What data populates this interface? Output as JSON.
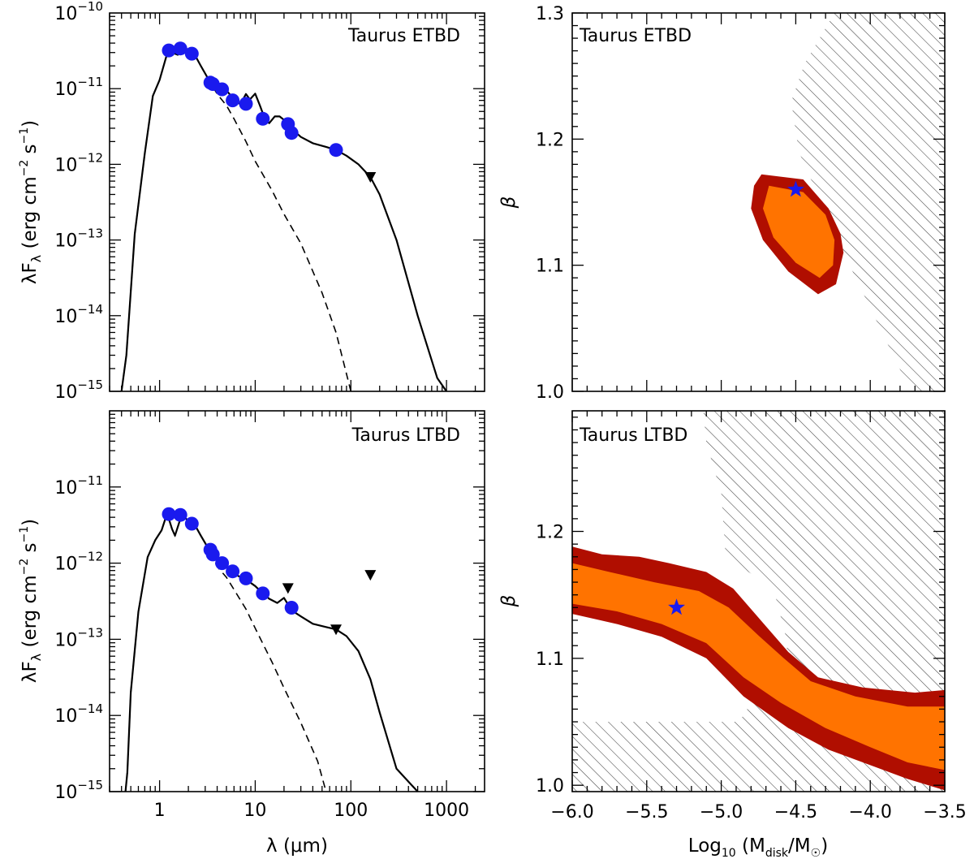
{
  "chart_data": [
    {
      "id": "sed_etbd",
      "type": "line",
      "title": "Taurus ETBD",
      "xlabel": "λ (μm)",
      "ylabel": "λF_λ (erg cm^-2 s^-1)",
      "xscale": "log",
      "yscale": "log",
      "xlim": [
        0.3,
        2500
      ],
      "ylim": [
        1e-15,
        1e-10
      ],
      "yticks": [
        {
          "v": 1e-15,
          "e": "−15"
        },
        {
          "v": 1e-14,
          "e": "−14"
        },
        {
          "v": 1e-13,
          "e": "−13"
        },
        {
          "v": 1e-12,
          "e": "−12"
        },
        {
          "v": 1e-11,
          "e": "−11"
        },
        {
          "v": 1e-10,
          "e": "−10"
        }
      ],
      "photometry": {
        "x": [
          1.25,
          1.65,
          2.17,
          3.4,
          3.6,
          4.5,
          5.8,
          8.0,
          12,
          22,
          24,
          70
        ],
        "y": [
          3.2e-11,
          3.4e-11,
          2.9e-11,
          1.2e-11,
          1.15e-11,
          9.8e-12,
          7e-12,
          6.3e-12,
          4e-12,
          3.4e-12,
          2.6e-12,
          1.55e-12
        ]
      },
      "upper_limits": {
        "x": [
          160
        ],
        "y": [
          6.8e-13
        ]
      },
      "model_total": {
        "x": [
          0.4,
          0.45,
          0.55,
          0.7,
          0.85,
          1.0,
          1.2,
          1.35,
          1.55,
          1.7,
          2.0,
          2.3,
          2.7,
          3.4,
          4.0,
          5.0,
          6.0,
          7.0,
          8.0,
          8.8,
          10,
          11.2,
          12.5,
          14,
          16,
          18,
          22,
          26,
          30,
          40,
          55,
          70,
          90,
          120,
          160,
          200,
          300,
          500,
          800,
          1000
        ],
        "y": [
          1e-15,
          3e-15,
          1.2e-13,
          1.4e-12,
          8e-12,
          1.3e-11,
          2.9e-11,
          3e-11,
          2.8e-11,
          3.5e-11,
          3.3e-11,
          2.9e-11,
          2e-11,
          1.2e-11,
          1.05e-11,
          9.5e-12,
          7.2e-12,
          6.2e-12,
          8.5e-12,
          7.2e-12,
          8.6e-12,
          6e-12,
          4.1e-12,
          3.5e-12,
          4.3e-12,
          4.3e-12,
          3.5e-12,
          2.7e-12,
          2.3e-12,
          1.9e-12,
          1.7e-12,
          1.55e-12,
          1.3e-12,
          1e-12,
          6.8e-13,
          4e-13,
          1e-13,
          1e-14,
          1.5e-15,
          1e-15
        ]
      },
      "model_photosphere": {
        "x": [
          0.4,
          0.45,
          0.55,
          0.7,
          0.85,
          1.0,
          1.2,
          1.35,
          1.55,
          1.7,
          2.0,
          2.3,
          2.7,
          3.4,
          4.0,
          5.0,
          6.0,
          8.0,
          10,
          15,
          20,
          30,
          50,
          70,
          100
        ],
        "y": [
          1e-15,
          3e-15,
          1.2e-13,
          1.4e-12,
          8e-12,
          1.3e-11,
          2.9e-11,
          3e-11,
          2.8e-11,
          3.5e-11,
          3.3e-11,
          2.9e-11,
          2e-11,
          1.2e-11,
          8.5e-12,
          6e-12,
          4e-12,
          2e-12,
          1.1e-12,
          4.5e-13,
          2.2e-13,
          9e-14,
          2e-14,
          6e-15,
          1e-15
        ]
      }
    },
    {
      "id": "grid_etbd",
      "type": "contour",
      "title": "Taurus ETBD",
      "xlabel": "Log10 (M_disk/M_sun)",
      "ylabel": "β",
      "xlim": [
        -6.0,
        -3.5
      ],
      "ylim": [
        1.0,
        1.3
      ],
      "yticks": [
        "1.0",
        "1.1",
        "1.2",
        "1.3"
      ],
      "best_fit": {
        "x": -4.5,
        "y": 1.16
      },
      "contour_outer": [
        [
          -4.73,
          1.172
        ],
        [
          -4.45,
          1.168
        ],
        [
          -4.28,
          1.145
        ],
        [
          -4.2,
          1.125
        ],
        [
          -4.18,
          1.11
        ],
        [
          -4.23,
          1.085
        ],
        [
          -4.35,
          1.077
        ],
        [
          -4.55,
          1.095
        ],
        [
          -4.72,
          1.12
        ],
        [
          -4.8,
          1.145
        ],
        [
          -4.78,
          1.163
        ]
      ],
      "contour_inner": [
        [
          -4.68,
          1.163
        ],
        [
          -4.45,
          1.158
        ],
        [
          -4.3,
          1.14
        ],
        [
          -4.24,
          1.12
        ],
        [
          -4.25,
          1.1
        ],
        [
          -4.34,
          1.09
        ],
        [
          -4.5,
          1.102
        ],
        [
          -4.65,
          1.122
        ],
        [
          -4.72,
          1.145
        ]
      ],
      "excluded_region": [
        [
          -4.24,
          1.3
        ],
        [
          -3.5,
          1.3
        ],
        [
          -3.5,
          1.0
        ],
        [
          -3.73,
          1.0
        ],
        [
          -4.18,
          1.11
        ],
        [
          -4.48,
          1.19
        ],
        [
          -4.53,
          1.23
        ],
        [
          -4.44,
          1.26
        ]
      ]
    },
    {
      "id": "sed_ltbd",
      "type": "line",
      "title": "Taurus LTBD",
      "xlabel": "λ (μm)",
      "ylabel": "λF_λ (erg cm^-2 s^-1)",
      "xscale": "log",
      "yscale": "log",
      "xlim": [
        0.3,
        2500
      ],
      "ylim": [
        1e-15,
        1e-10
      ],
      "yticks": [
        {
          "v": 1e-15,
          "e": "−15"
        },
        {
          "v": 1e-14,
          "e": "−14"
        },
        {
          "v": 1e-13,
          "e": "−13"
        },
        {
          "v": 1e-12,
          "e": "−12"
        },
        {
          "v": 1e-11,
          "e": "−11"
        }
      ],
      "xticks": [
        {
          "v": 1,
          "t": "1"
        },
        {
          "v": 10,
          "t": "10"
        },
        {
          "v": 100,
          "t": "100"
        },
        {
          "v": 1000,
          "t": "1000"
        }
      ],
      "photometry": {
        "x": [
          1.25,
          1.65,
          2.17,
          3.4,
          3.6,
          4.5,
          5.8,
          8.0,
          12,
          24
        ],
        "y": [
          4.4e-12,
          4.3e-12,
          3.3e-12,
          1.5e-12,
          1.3e-12,
          1e-12,
          7.8e-13,
          6.3e-13,
          4e-13,
          2.6e-13
        ]
      },
      "upper_limits": {
        "x": [
          22,
          70,
          160
        ],
        "y": [
          4.7e-13,
          1.35e-13,
          7e-13
        ]
      },
      "model_total": {
        "x": [
          0.44,
          0.46,
          0.5,
          0.6,
          0.75,
          0.9,
          1.05,
          1.2,
          1.35,
          1.45,
          1.7,
          2.0,
          2.3,
          2.7,
          3.4,
          4.0,
          5.0,
          6.0,
          8.0,
          10,
          12,
          14,
          17,
          20,
          24,
          30,
          40,
          55,
          70,
          90,
          120,
          160,
          200,
          300,
          500
        ],
        "y": [
          1e-15,
          1.8e-15,
          2e-14,
          2.3e-13,
          1.2e-12,
          2e-12,
          2.7e-12,
          4.5e-12,
          2.8e-12,
          2.3e-12,
          4.3e-12,
          3.6e-12,
          3.3e-12,
          2.3e-12,
          1.4e-12,
          1.1e-12,
          9e-13,
          7.2e-13,
          6.1e-13,
          5e-13,
          4e-13,
          3.4e-13,
          3e-13,
          3.5e-13,
          2.4e-13,
          2e-13,
          1.6e-13,
          1.45e-13,
          1.35e-13,
          1.1e-13,
          7e-14,
          3e-14,
          1.1e-14,
          2e-15,
          1e-15
        ]
      },
      "model_photosphere": {
        "x": [
          0.44,
          0.46,
          0.5,
          0.6,
          0.75,
          0.9,
          1.05,
          1.2,
          1.35,
          1.45,
          1.7,
          2.0,
          2.3,
          2.7,
          3.4,
          4.0,
          5.0,
          6.0,
          8.0,
          10,
          15,
          20,
          30,
          45,
          55
        ],
        "y": [
          1e-15,
          1.8e-15,
          2e-14,
          2.3e-13,
          1.2e-12,
          2e-12,
          2.7e-12,
          4.5e-12,
          2.8e-12,
          2.3e-12,
          4.3e-12,
          3.6e-12,
          3.3e-12,
          2.3e-12,
          1.4e-12,
          9e-13,
          6.5e-13,
          4.5e-13,
          2.5e-13,
          1.4e-13,
          5e-14,
          2.3e-14,
          8e-15,
          2.5e-15,
          1e-15
        ]
      }
    },
    {
      "id": "grid_ltbd",
      "type": "contour",
      "title": "Taurus LTBD",
      "xlabel": "Log10 (M_disk/M_sun)",
      "ylabel": "β",
      "xlim": [
        -6.0,
        -3.5
      ],
      "ylim": [
        0.995,
        1.295
      ],
      "yticks": [
        "1.0",
        "1.1",
        "1.2"
      ],
      "xticks": [
        "−6.0",
        "−5.5",
        "−5.0",
        "−4.5",
        "−4.0",
        "−3.5"
      ],
      "best_fit": {
        "x": -5.3,
        "y": 1.14
      },
      "contour_outer": [
        [
          -6.0,
          1.188
        ],
        [
          -5.8,
          1.182
        ],
        [
          -5.55,
          1.18
        ],
        [
          -5.35,
          1.175
        ],
        [
          -5.1,
          1.168
        ],
        [
          -4.92,
          1.155
        ],
        [
          -4.75,
          1.132
        ],
        [
          -4.55,
          1.105
        ],
        [
          -4.35,
          1.085
        ],
        [
          -4.05,
          1.077
        ],
        [
          -3.7,
          1.073
        ],
        [
          -3.5,
          1.075
        ],
        [
          -3.5,
          0.996
        ],
        [
          -3.75,
          1.005
        ],
        [
          -3.98,
          1.015
        ],
        [
          -4.28,
          1.028
        ],
        [
          -4.55,
          1.045
        ],
        [
          -4.85,
          1.07
        ],
        [
          -5.1,
          1.1
        ],
        [
          -5.4,
          1.117
        ],
        [
          -5.7,
          1.127
        ],
        [
          -6.0,
          1.135
        ]
      ],
      "contour_inner": [
        [
          -6.0,
          1.175
        ],
        [
          -5.75,
          1.168
        ],
        [
          -5.45,
          1.16
        ],
        [
          -5.15,
          1.153
        ],
        [
          -4.95,
          1.14
        ],
        [
          -4.75,
          1.118
        ],
        [
          -4.58,
          1.1
        ],
        [
          -4.4,
          1.082
        ],
        [
          -4.1,
          1.07
        ],
        [
          -3.75,
          1.062
        ],
        [
          -3.5,
          1.062
        ],
        [
          -3.5,
          1.012
        ],
        [
          -3.75,
          1.018
        ],
        [
          -4.0,
          1.03
        ],
        [
          -4.3,
          1.045
        ],
        [
          -4.6,
          1.065
        ],
        [
          -4.85,
          1.085
        ],
        [
          -5.1,
          1.112
        ],
        [
          -5.4,
          1.127
        ],
        [
          -5.7,
          1.137
        ],
        [
          -6.0,
          1.143
        ]
      ],
      "excluded_region": [
        [
          -5.12,
          1.295
        ],
        [
          -3.5,
          1.295
        ],
        [
          -3.5,
          0.995
        ],
        [
          -6.0,
          0.995
        ],
        [
          -6.0,
          1.05
        ],
        [
          -4.88,
          1.05
        ],
        [
          -4.55,
          1.11
        ],
        [
          -4.65,
          1.155
        ],
        [
          -4.97,
          1.18
        ],
        [
          -5.0,
          1.23
        ],
        [
          -5.1,
          1.27
        ]
      ]
    }
  ]
}
